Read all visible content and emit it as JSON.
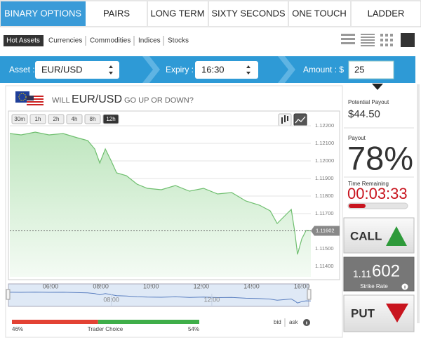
{
  "tabs": [
    "BINARY OPTIONS",
    "PAIRS",
    "LONG TERM",
    "SIXTY SECONDS",
    "ONE TOUCH",
    "LADDER"
  ],
  "asset_filters": [
    "Hot Assets",
    "Currencies",
    "Commodities",
    "Indices",
    "Stocks"
  ],
  "trade_bar": {
    "asset_label": "Asset :",
    "asset": "EUR/USD",
    "expiry_label": "Expiry :",
    "expiry": "16:30",
    "amount_label": "Amount : $",
    "amount": "25"
  },
  "question": {
    "prefix": "WILL",
    "asset": "EUR/USD",
    "suffix": "GO UP OR DOWN?"
  },
  "timeframes": [
    "30m",
    "1h",
    "2h",
    "4h",
    "8h",
    "12h"
  ],
  "chart_data": {
    "type": "area",
    "x": [
      4.38,
      4.83,
      5.39,
      5.94,
      6.5,
      7.06,
      7.48,
      7.76,
      7.96,
      8.18,
      8.4,
      8.63,
      9.02,
      9.44,
      9.85,
      10.41,
      10.97,
      11.53,
      12.09,
      12.65,
      13.21,
      13.77,
      14.32,
      14.74,
      15.02,
      15.3,
      15.58,
      15.72,
      15.83,
      16.0,
      16.17,
      16.36
    ],
    "values": [
      1.12156,
      1.12148,
      1.12164,
      1.12148,
      1.12156,
      1.12132,
      1.12116,
      1.12068,
      1.11988,
      1.12068,
      1.12004,
      1.11932,
      1.11916,
      1.11868,
      1.11844,
      1.11836,
      1.1186,
      1.11828,
      1.11844,
      1.11812,
      1.1182,
      1.11772,
      1.11748,
      1.11716,
      1.11644,
      1.11684,
      1.11724,
      1.11596,
      1.11468,
      1.11556,
      1.11604,
      1.11602
    ],
    "color": "#6fbf6f",
    "xlim": [
      4.38,
      16.36
    ],
    "ylim": [
      1.1134,
      1.1224
    ],
    "yticks": [
      {
        "value": 1.122,
        "label": "1.12200"
      },
      {
        "value": 1.121,
        "label": "1.12100"
      },
      {
        "value": 1.12,
        "label": "1.12000"
      },
      {
        "value": 1.119,
        "label": "1.11900"
      },
      {
        "value": 1.118,
        "label": "1.11800"
      },
      {
        "value": 1.117,
        "label": "1.11700"
      },
      {
        "value": 1.115,
        "label": "1.11500"
      },
      {
        "value": 1.114,
        "label": "1.11400"
      }
    ],
    "grid": true,
    "current_price": 1.11602,
    "navigator_xticks": [
      {
        "value": 6,
        "label": "06:00"
      },
      {
        "value": 8,
        "label": "08:00"
      },
      {
        "value": 10,
        "label": "10:00"
      },
      {
        "value": 12,
        "label": "12:00"
      },
      {
        "value": 14,
        "label": "14:00"
      },
      {
        "value": 16,
        "label": "16:00"
      }
    ],
    "navigator_labels": [
      {
        "value": 8,
        "label": "08:00"
      },
      {
        "value": 12,
        "label": "12:00"
      }
    ]
  },
  "potential_payout": {
    "label": "Potential Payout",
    "value": "$44.50"
  },
  "payout": {
    "label": "Payout",
    "value": "78%"
  },
  "time_remaining": {
    "label": "Time Remaining",
    "value": "00:03:33"
  },
  "call": "CALL",
  "put": "PUT",
  "strike": {
    "prefix": "1.11",
    "pips": "602",
    "label": "Strike Rate"
  },
  "trader_choice": {
    "label": "Trader Choice",
    "values": [
      46,
      54
    ],
    "value_labels": [
      "46%",
      "54%"
    ]
  },
  "quote": {
    "bid": "bid",
    "ask": "ask"
  }
}
